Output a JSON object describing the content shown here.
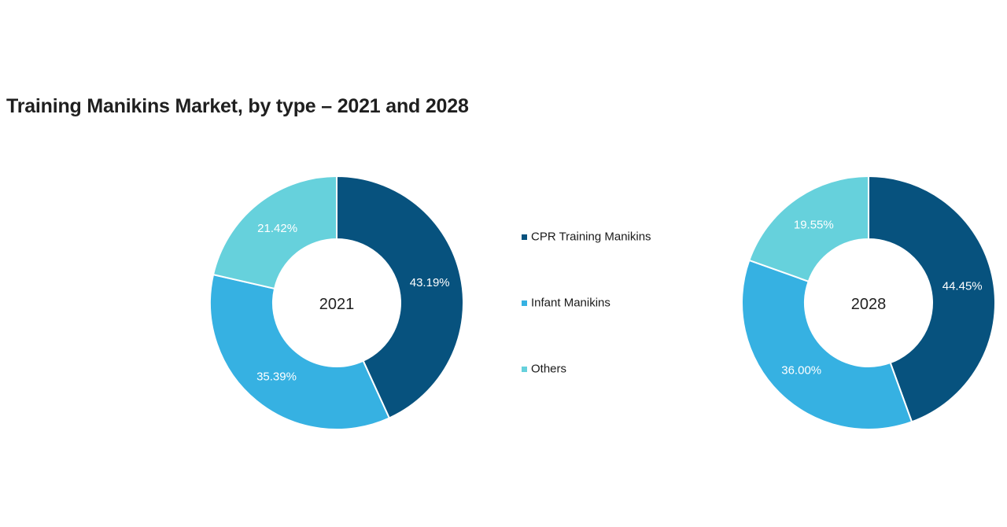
{
  "chart_data": {
    "type": "pie",
    "subtype": "donut",
    "title": "Training Manikins Market, by type – 2021 and 2028",
    "categories": [
      "CPR Training Manikins",
      "Infant Manikins",
      "Others"
    ],
    "colors": [
      "#07527e",
      "#36b1e2",
      "#66d1dc"
    ],
    "series": [
      {
        "name": "2021",
        "values": [
          43.19,
          35.39,
          21.42
        ],
        "labels": [
          "43.19%",
          "35.39%",
          "21.42%"
        ]
      },
      {
        "name": "2028",
        "values": [
          44.45,
          36.0,
          19.55
        ],
        "labels": [
          "44.45%",
          "36.00%",
          "19.55%"
        ]
      }
    ],
    "legend_position": "center"
  }
}
